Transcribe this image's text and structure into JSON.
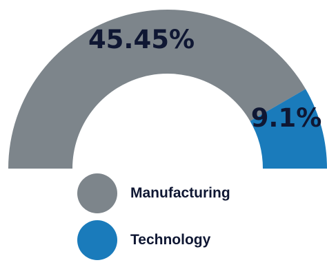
{
  "chart_data": {
    "type": "pie",
    "variant": "semi-donut",
    "slices": [
      {
        "name": "Manufacturing",
        "value": 45.45,
        "label": "45.45%",
        "color": "#7d858b"
      },
      {
        "name": "Technology",
        "value": 9.1,
        "label": "9.1%",
        "color": "#1a7bbb"
      }
    ],
    "legend": {
      "position": "bottom",
      "items": [
        "Manufacturing",
        "Technology"
      ]
    }
  }
}
